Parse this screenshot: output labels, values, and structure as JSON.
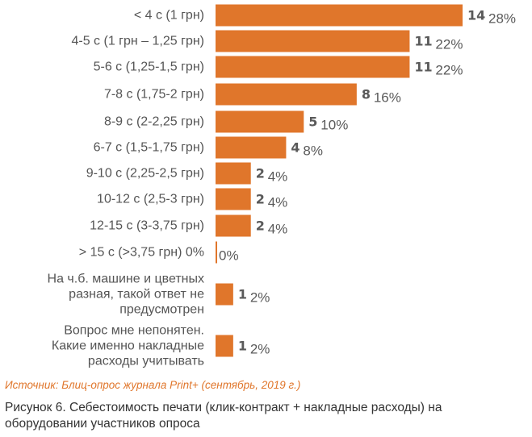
{
  "chart_data": {
    "type": "bar",
    "orientation": "horizontal",
    "bar_color": "#e0762b",
    "categories": [
      [
        "< 4 с (1 грн)"
      ],
      [
        "4-5 с (1 грн  – 1,25 грн)"
      ],
      [
        "5-6 с (1,25-1,5 грн)"
      ],
      [
        "7-8 с (1,75-2 грн)"
      ],
      [
        "8-9 с (2-2,25 грн)"
      ],
      [
        "6-7 с (1,5-1,75 грн)"
      ],
      [
        "9-10 с (2,25-2,5 грн)"
      ],
      [
        "10-12 с (2,5-3 грн)"
      ],
      [
        "12-15 с (3-3,75 грн)"
      ],
      [
        "> 15 с (>3,75 грн) 0%"
      ],
      [
        "На ч.б. машине и цветных",
        "разная, такой ответ не",
        "предусмотрен"
      ],
      [
        "Вопрос мне непонятен.",
        "Какие именно накладные",
        "расходы учитывать"
      ]
    ],
    "values": [
      14,
      11,
      11,
      8,
      5,
      4,
      2,
      2,
      2,
      0,
      1,
      1
    ],
    "count_labels": [
      "14",
      "11",
      "11",
      "8",
      "5",
      "4",
      "2",
      "2",
      "2",
      "",
      "1",
      "1"
    ],
    "percent_labels": [
      "28%",
      "22%",
      "22%",
      "16%",
      "10%",
      "8%",
      "4%",
      "4%",
      "4%",
      "0%",
      "2%",
      "2%"
    ],
    "xlim": [
      0,
      14
    ]
  },
  "source": "Источник: Блиц-опрос журнала Print+ (сентябрь, 2019 г.)",
  "caption": "Рисунок 6. Себестоимость печати (клик-контракт + накладные расходы) на оборудовании участников опроса"
}
